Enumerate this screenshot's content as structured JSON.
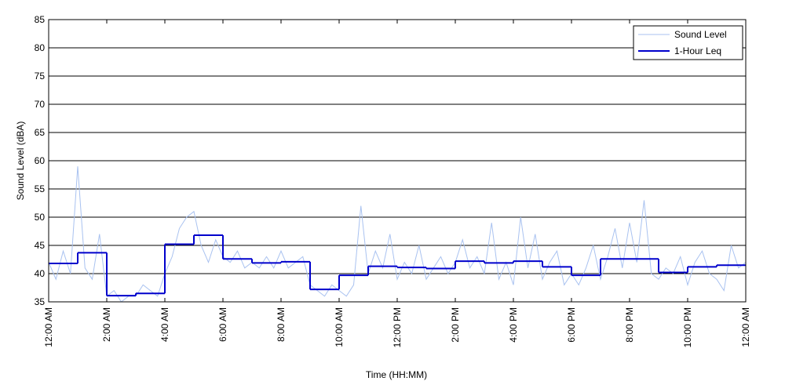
{
  "chart_data": {
    "type": "line",
    "x_label": "Time (HH:MM)",
    "y_label": "Sound Level (dBA)",
    "xlim": [
      0,
      24
    ],
    "ylim": [
      35,
      85
    ],
    "xticks": [
      {
        "value": 0,
        "label": "12:00 AM"
      },
      {
        "value": 2,
        "label": "2:00 AM"
      },
      {
        "value": 4,
        "label": "4:00 AM"
      },
      {
        "value": 6,
        "label": "6:00 AM"
      },
      {
        "value": 8,
        "label": "8:00 AM"
      },
      {
        "value": 10,
        "label": "10:00 AM"
      },
      {
        "value": 12,
        "label": "12:00 PM"
      },
      {
        "value": 14,
        "label": "2:00 PM"
      },
      {
        "value": 16,
        "label": "4:00 PM"
      },
      {
        "value": 18,
        "label": "6:00 PM"
      },
      {
        "value": 20,
        "label": "8:00 PM"
      },
      {
        "value": 22,
        "label": "10:00 PM"
      },
      {
        "value": 24,
        "label": "12:00 AM"
      }
    ],
    "yticks": [
      35,
      40,
      45,
      50,
      55,
      60,
      65,
      70,
      75,
      80,
      85
    ],
    "grid": true,
    "legend": "upper right",
    "series": [
      {
        "name": "Sound Level",
        "color": "#a9c2f0",
        "style": "line",
        "x": [
          0,
          0.25,
          0.5,
          0.75,
          1,
          1.25,
          1.5,
          1.75,
          2,
          2.25,
          2.5,
          2.75,
          3,
          3.25,
          3.5,
          3.75,
          4,
          4.25,
          4.5,
          4.75,
          5,
          5.25,
          5.5,
          5.75,
          6,
          6.25,
          6.5,
          6.75,
          7,
          7.25,
          7.5,
          7.75,
          8,
          8.25,
          8.5,
          8.75,
          9,
          9.25,
          9.5,
          9.75,
          10,
          10.25,
          10.5,
          10.75,
          11,
          11.25,
          11.5,
          11.75,
          12,
          12.25,
          12.5,
          12.75,
          13,
          13.25,
          13.5,
          13.75,
          14,
          14.25,
          14.5,
          14.75,
          15,
          15.25,
          15.5,
          15.75,
          16,
          16.25,
          16.5,
          16.75,
          17,
          17.25,
          17.5,
          17.75,
          18,
          18.25,
          18.5,
          18.75,
          19,
          19.25,
          19.5,
          19.75,
          20,
          20.25,
          20.5,
          20.75,
          21,
          21.25,
          21.5,
          21.75,
          22,
          22.25,
          22.5,
          22.75,
          23,
          23.25,
          23.5,
          23.75,
          24
        ],
        "values": [
          42,
          39,
          44,
          40,
          59,
          41,
          39,
          47,
          36,
          37,
          35,
          36,
          36,
          38,
          37,
          36,
          40,
          43,
          48,
          50,
          51,
          45,
          42,
          46,
          43,
          42,
          44,
          41,
          42,
          41,
          43,
          41,
          44,
          41,
          42,
          43,
          38,
          37,
          36,
          38,
          37,
          36,
          38,
          52,
          40,
          44,
          41,
          47,
          39,
          42,
          40,
          45,
          39,
          41,
          43,
          40,
          42,
          46,
          41,
          43,
          40,
          49,
          39,
          42,
          38,
          50,
          41,
          47,
          39,
          42,
          44,
          38,
          40,
          38,
          41,
          45,
          39,
          43,
          48,
          41,
          49,
          42,
          53,
          40,
          39,
          41,
          40,
          43,
          38,
          42,
          44,
          40,
          39,
          37,
          45,
          41,
          42
        ]
      },
      {
        "name": "1-Hour Leq",
        "color": "#0000cc",
        "style": "step",
        "x": [
          0,
          1,
          2,
          3,
          4,
          5,
          6,
          7,
          8,
          9,
          10,
          11,
          12,
          13,
          14,
          15,
          16,
          17,
          18,
          19,
          20,
          21,
          22,
          23
        ],
        "values": [
          41.8,
          43.7,
          36.1,
          36.5,
          45.2,
          46.8,
          42.6,
          41.9,
          42.1,
          37.2,
          39.7,
          41.3,
          41.1,
          40.9,
          42.2,
          41.9,
          42.2,
          41.2,
          39.7,
          42.6,
          42.6,
          40.2,
          41.2,
          41.5
        ]
      }
    ]
  }
}
